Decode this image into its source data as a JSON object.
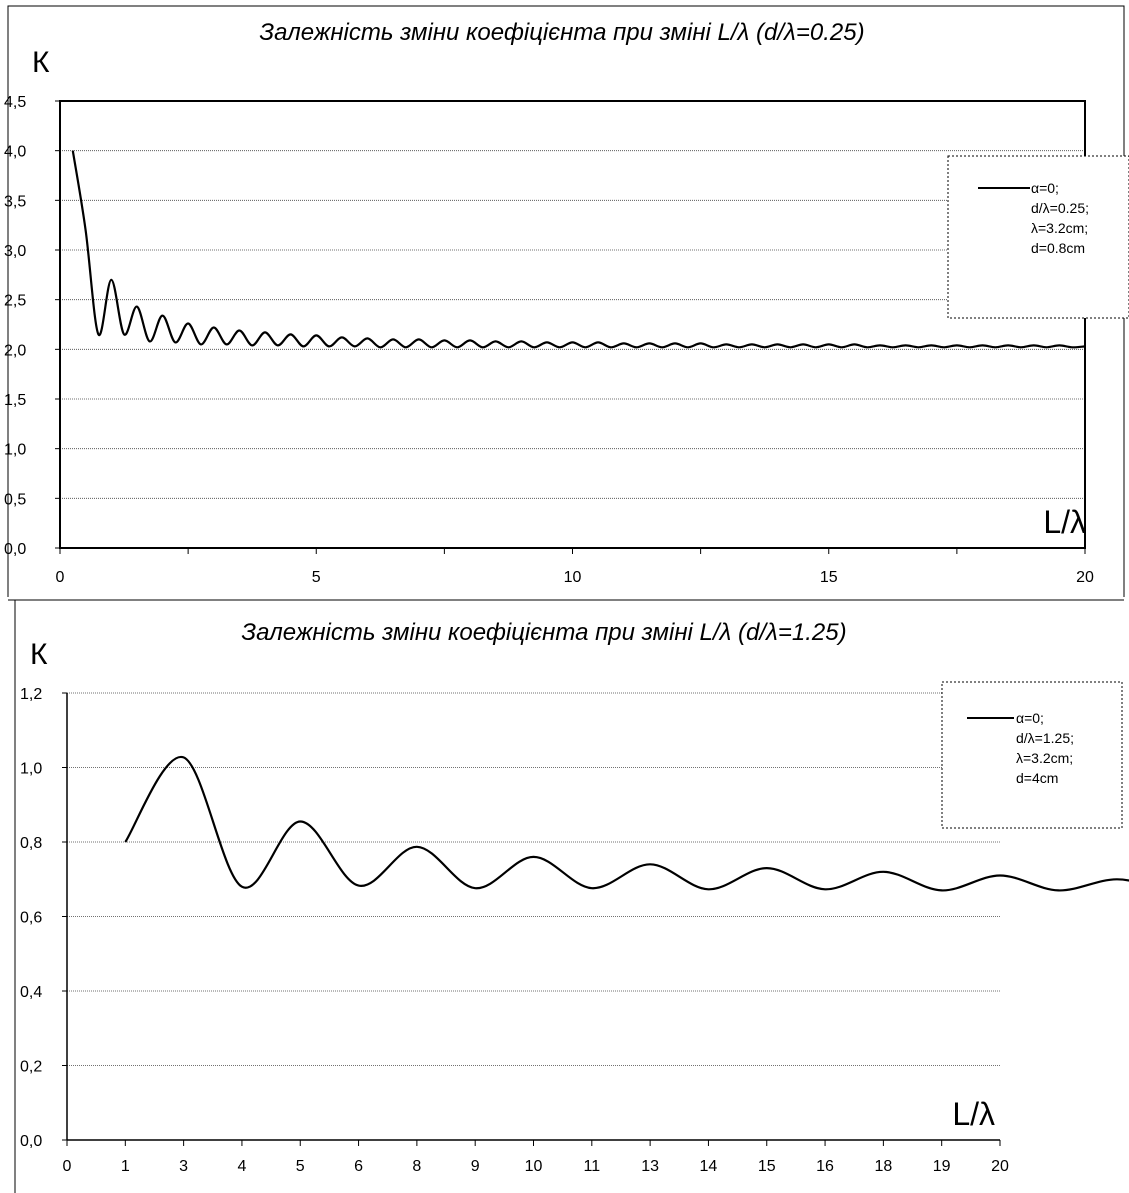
{
  "chart_data": [
    {
      "type": "line",
      "title": "Залежність зміни коефіцієнта при зміні L/λ (d/λ=0.25)",
      "ylabel": "К",
      "xlabel": "L/λ",
      "xlim": [
        0,
        20
      ],
      "ylim": [
        0,
        4.5
      ],
      "x_ticks": [
        "0",
        "5",
        "10",
        "15",
        "20"
      ],
      "y_ticks": [
        "0,0",
        "0,5",
        "1,0",
        "1,5",
        "2,0",
        "2,5",
        "3,0",
        "3,5",
        "4,0",
        "4,5"
      ],
      "grid": true,
      "legend_position": "top-right",
      "legend": [
        "α=0;",
        "d/λ=0.25;",
        "λ=3.2cm;",
        "d=0.8cm"
      ],
      "series": [
        {
          "color": "#000000",
          "x": [
            0.25,
            0.5,
            0.75,
            1.0,
            1.25,
            1.5,
            1.75,
            2.0,
            2.25,
            2.5,
            2.75,
            3.0,
            3.25,
            3.5,
            3.75,
            4.0,
            4.25,
            4.5,
            4.75,
            5.0,
            5.25,
            5.5,
            5.75,
            6.0,
            6.25,
            6.5,
            6.75,
            7.0,
            7.25,
            7.5,
            7.75,
            8.0,
            8.25,
            8.5,
            8.75,
            9.0,
            9.25,
            9.5,
            9.75,
            10.0,
            10.25,
            10.5,
            10.75,
            11.0,
            11.25,
            11.5,
            11.75,
            12.0,
            12.25,
            12.5,
            12.75,
            13.0,
            13.25,
            13.5,
            13.75,
            14.0,
            14.25,
            14.5,
            14.75,
            15.0,
            15.25,
            15.5,
            15.75,
            16.0,
            16.25,
            16.5,
            16.75,
            17.0,
            17.25,
            17.5,
            17.75,
            18.0,
            18.25,
            18.5,
            18.75,
            19.0,
            19.25,
            19.5,
            19.75,
            20.0
          ],
          "y": [
            4.0,
            3.2,
            2.15,
            2.7,
            2.15,
            2.43,
            2.08,
            2.34,
            2.07,
            2.26,
            2.05,
            2.22,
            2.05,
            2.19,
            2.04,
            2.17,
            2.04,
            2.15,
            2.03,
            2.14,
            2.03,
            2.12,
            2.03,
            2.11,
            2.02,
            2.1,
            2.02,
            2.1,
            2.02,
            2.09,
            2.02,
            2.09,
            2.02,
            2.08,
            2.02,
            2.08,
            2.02,
            2.07,
            2.02,
            2.07,
            2.02,
            2.07,
            2.02,
            2.06,
            2.02,
            2.06,
            2.02,
            2.06,
            2.02,
            2.06,
            2.02,
            2.05,
            2.02,
            2.05,
            2.02,
            2.05,
            2.02,
            2.05,
            2.02,
            2.05,
            2.02,
            2.05,
            2.02,
            2.04,
            2.02,
            2.04,
            2.02,
            2.04,
            2.02,
            2.04,
            2.02,
            2.04,
            2.02,
            2.04,
            2.02,
            2.04,
            2.02,
            2.04,
            2.02,
            2.03
          ]
        }
      ]
    },
    {
      "type": "line",
      "title": "Залежність зміни коефіцієнта при зміні L/λ (d/λ=1.25)",
      "ylabel": "К",
      "xlabel": "L/λ",
      "categories": [
        "0",
        "1",
        "3",
        "4",
        "5",
        "6",
        "8",
        "9",
        "10",
        "11",
        "13",
        "14",
        "15",
        "16",
        "18",
        "19",
        "20"
      ],
      "ylim": [
        0,
        1.2
      ],
      "y_ticks": [
        "0,0",
        "0,2",
        "0,4",
        "0,6",
        "0,8",
        "1,0",
        "1,2"
      ],
      "grid": true,
      "legend_position": "top-right",
      "legend": [
        "α=0;",
        "d/λ=1.25;",
        "λ=3.2cm;",
        "d=4cm"
      ],
      "series": [
        {
          "color": "#000000",
          "x": [
            1.0,
            2.0,
            3.0,
            4.0,
            5.0,
            6.0,
            7.0,
            8.0,
            9.0,
            10.0,
            11.0,
            12.0,
            13.0,
            14.0,
            15.0,
            16.0,
            17.0,
            18.0,
            19.0,
            20.0
          ],
          "y": [
            0.8,
            1.027,
            0.68,
            0.855,
            0.683,
            0.787,
            0.676,
            0.76,
            0.676,
            0.74,
            0.673,
            0.73,
            0.673,
            0.72,
            0.67,
            0.71,
            0.67,
            0.7,
            0.672,
            0.71
          ]
        }
      ]
    }
  ]
}
